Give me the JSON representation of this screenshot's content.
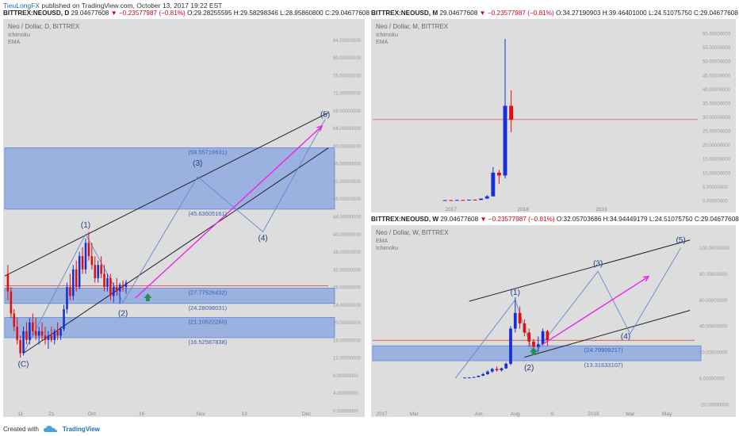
{
  "publish_bar": {
    "user": "TieuLongFX",
    "text": "published on TradingView.com, October 13, 2017 19:22 EST"
  },
  "headers": {
    "daily": {
      "symbol": "BITTREX:NEOUSD, D",
      "price": "29.04677608",
      "change": "−0.23577987 (−0.81%)",
      "o": "O:29.28255595",
      "h": "H:29.58298346",
      "l": "L:28.95860800",
      "c": "C:29.04677608"
    },
    "monthly": {
      "symbol": "BITTREX:NEOUSD, M",
      "price": "29.04677608",
      "change": "−0.23577987 (−0.81%)",
      "o": "O:34.27190903",
      "h": "H:39.46401000",
      "l": "L:24.51075750",
      "c": "C:29.04677608"
    },
    "weekly": {
      "symbol": "BITTREX:NEOUSD, W",
      "price": "29.04677608",
      "change": "−0.23577987 (−0.81%)",
      "o": "O:32.05703686",
      "h": "H:34.94449179",
      "l": "L:24.51075750",
      "c": "C:29.04677608"
    }
  },
  "footer": {
    "created_with": "Created with",
    "brand": "TradingView",
    "brand_icon": "tradingview-cloud-icon"
  },
  "colors": {
    "panel_bg": "#dddddd",
    "up": "#1530d8",
    "down": "#e01010",
    "zone": "#7f9fe3",
    "arrow": "#ee22ee",
    "wave": "#5d88c8"
  },
  "chart_data": [
    {
      "type": "candlestick",
      "id": "daily",
      "title": "Neo / Dollar, D, BITTREX",
      "indicators": [
        "Ichimoku",
        "EMA"
      ],
      "ylim": [
        0,
        88
      ],
      "y_ticks": [
        0,
        4,
        8,
        12,
        16,
        20,
        24,
        28,
        32,
        36,
        40,
        44,
        48,
        52,
        56,
        60,
        64,
        68,
        72,
        76,
        80,
        84
      ],
      "y_tick_labels": [
        "0.00000000",
        "4.00000000",
        "8.00000000",
        "12.00000000",
        "16.00000000",
        "20.00000000",
        "24.00000000",
        "28.00000000",
        "32.00000000",
        "36.00000000",
        "40.00000000",
        "44.00000000",
        "48.00000000",
        "52.00000000",
        "56.00000000",
        "60.00000000",
        "64.00000000",
        "68.00000000",
        "72.00000000",
        "76.00000000",
        "80.00000000",
        "84.00000000"
      ],
      "x_range": [
        0,
        104
      ],
      "x_ticks": [
        {
          "x": 5,
          "label": "11"
        },
        {
          "x": 15,
          "label": "21"
        },
        {
          "x": 28,
          "label": "Oct"
        },
        {
          "x": 44,
          "label": "16"
        },
        {
          "x": 63,
          "label": "Nov"
        },
        {
          "x": 77,
          "label": "13"
        },
        {
          "x": 97,
          "label": "Dec"
        }
      ],
      "candles": [
        {
          "x": 1,
          "o": 31,
          "h": 33,
          "l": 25,
          "c": 27
        },
        {
          "x": 2,
          "o": 27,
          "h": 28,
          "l": 21,
          "c": 22
        },
        {
          "x": 3,
          "o": 22,
          "h": 23,
          "l": 18,
          "c": 19
        },
        {
          "x": 4,
          "o": 19,
          "h": 21,
          "l": 15,
          "c": 16
        },
        {
          "x": 5,
          "o": 16,
          "h": 17,
          "l": 12,
          "c": 13
        },
        {
          "x": 6,
          "o": 13,
          "h": 19,
          "l": 12.5,
          "c": 18
        },
        {
          "x": 7,
          "o": 18,
          "h": 20,
          "l": 15,
          "c": 16
        },
        {
          "x": 8,
          "o": 16,
          "h": 21,
          "l": 15,
          "c": 20
        },
        {
          "x": 9,
          "o": 20,
          "h": 22,
          "l": 17,
          "c": 18
        },
        {
          "x": 10,
          "o": 18,
          "h": 21,
          "l": 16,
          "c": 17
        },
        {
          "x": 11,
          "o": 17,
          "h": 19,
          "l": 15,
          "c": 18
        },
        {
          "x": 12,
          "o": 18,
          "h": 20,
          "l": 16,
          "c": 17
        },
        {
          "x": 13,
          "o": 17,
          "h": 19,
          "l": 15,
          "c": 16
        },
        {
          "x": 14,
          "o": 16,
          "h": 18,
          "l": 14,
          "c": 17
        },
        {
          "x": 15,
          "o": 17,
          "h": 19,
          "l": 15.5,
          "c": 16
        },
        {
          "x": 16,
          "o": 16,
          "h": 18.5,
          "l": 15,
          "c": 18
        },
        {
          "x": 17,
          "o": 18,
          "h": 20,
          "l": 16,
          "c": 17
        },
        {
          "x": 18,
          "o": 17,
          "h": 19,
          "l": 16,
          "c": 18.5
        },
        {
          "x": 19,
          "o": 18.5,
          "h": 24,
          "l": 18,
          "c": 23
        },
        {
          "x": 20,
          "o": 23,
          "h": 29,
          "l": 22,
          "c": 28
        },
        {
          "x": 21,
          "o": 28,
          "h": 31,
          "l": 25,
          "c": 26
        },
        {
          "x": 22,
          "o": 26,
          "h": 33,
          "l": 25,
          "c": 32
        },
        {
          "x": 23,
          "o": 32,
          "h": 34,
          "l": 27,
          "c": 28
        },
        {
          "x": 24,
          "o": 28,
          "h": 36,
          "l": 27.5,
          "c": 35
        },
        {
          "x": 25,
          "o": 35,
          "h": 37,
          "l": 31,
          "c": 32
        },
        {
          "x": 26,
          "o": 32,
          "h": 39,
          "l": 31,
          "c": 38
        },
        {
          "x": 27,
          "o": 38,
          "h": 40.5,
          "l": 34,
          "c": 35
        },
        {
          "x": 28,
          "o": 35,
          "h": 38,
          "l": 32,
          "c": 33
        },
        {
          "x": 29,
          "o": 33,
          "h": 35,
          "l": 29,
          "c": 30
        },
        {
          "x": 30,
          "o": 30,
          "h": 34,
          "l": 29,
          "c": 33
        },
        {
          "x": 31,
          "o": 33,
          "h": 35,
          "l": 30,
          "c": 31
        },
        {
          "x": 32,
          "o": 31,
          "h": 33,
          "l": 27,
          "c": 28
        },
        {
          "x": 33,
          "o": 28,
          "h": 31,
          "l": 27,
          "c": 30
        },
        {
          "x": 34,
          "o": 30,
          "h": 31,
          "l": 25,
          "c": 26
        },
        {
          "x": 35,
          "o": 26,
          "h": 29,
          "l": 24.5,
          "c": 28
        },
        {
          "x": 36,
          "o": 28,
          "h": 30,
          "l": 26,
          "c": 27
        },
        {
          "x": 37,
          "o": 27,
          "h": 29,
          "l": 24.2,
          "c": 28.5
        },
        {
          "x": 38,
          "o": 28.5,
          "h": 29.5,
          "l": 27,
          "c": 28
        },
        {
          "x": 39,
          "o": 28,
          "h": 29.6,
          "l": 26.5,
          "c": 29
        }
      ],
      "horizontal_line": 28.3,
      "zones": [
        [
          24.28098031,
          27.77526432
        ],
        [
          16.52587838,
          21.10522265
        ],
        [
          45.63605161,
          59.55719631
        ]
      ],
      "fib_labels": [
        {
          "x": 59,
          "y": 59.55719631,
          "label": "(59.55719631)"
        },
        {
          "x": 59,
          "y": 45.63605161,
          "label": "(45.63605161)"
        },
        {
          "x": 59,
          "y": 27.77526432,
          "label": "(27.77526432)"
        },
        {
          "x": 59,
          "y": 24.28098031,
          "label": "(24.28098031)"
        },
        {
          "x": 59,
          "y": 21.10522265,
          "label": "(21.10522265)"
        },
        {
          "x": 59,
          "y": 16.52587838,
          "label": "(16.52587838)"
        }
      ],
      "wave_labels": [
        {
          "x": 6,
          "y": 10,
          "label": "(C)"
        },
        {
          "x": 26,
          "y": 41.5,
          "label": "(1)"
        },
        {
          "x": 38,
          "y": 21.5,
          "label": "(2)"
        },
        {
          "x": 62,
          "y": 55.5,
          "label": "(3)"
        },
        {
          "x": 83,
          "y": 38.5,
          "label": "(4)"
        },
        {
          "x": 103,
          "y": 66.5,
          "label": "(5)"
        }
      ],
      "wave_path": [
        [
          6,
          13
        ],
        [
          26,
          40
        ],
        [
          38,
          24.5
        ],
        [
          62,
          53
        ],
        [
          83,
          40.5
        ],
        [
          103,
          66
        ]
      ],
      "channel_lines": [
        {
          "from": [
            0,
            30.5
          ],
          "to": [
            104,
            67.5
          ]
        },
        {
          "from": [
            6,
            13
          ],
          "to": [
            104,
            59.5
          ]
        }
      ],
      "arrow": {
        "from": [
          42,
          25.5
        ],
        "to": [
          102,
          64.5
        ]
      },
      "marker": {
        "x": 46,
        "y": 25.5
      }
    },
    {
      "type": "candlestick",
      "id": "monthly",
      "title": "Neo / Dollar, M, BITTREX",
      "indicators": [
        "Ichimoku",
        "EMA"
      ],
      "ylim": [
        -2,
        64
      ],
      "y_tick_labels": [
        "0.00000000",
        "5.00000000",
        "10.00000000",
        "15.00000000",
        "20.00000000",
        "25.00000000",
        "30.00000000",
        "35.00000000",
        "40.00000000",
        "45.00000000",
        "50.00000000",
        "55.00000000",
        "60.00000000"
      ],
      "x_range": [
        0,
        54
      ],
      "x_ticks": [
        {
          "x": 13,
          "label": "2017"
        },
        {
          "x": 25,
          "label": "2018"
        },
        {
          "x": 38,
          "label": "2019"
        }
      ],
      "candles": [
        {
          "x": 12,
          "o": 0.1,
          "h": 0.2,
          "l": 0.05,
          "c": 0.15
        },
        {
          "x": 13,
          "o": 0.15,
          "h": 0.2,
          "l": 0.1,
          "c": 0.1
        },
        {
          "x": 14,
          "o": 0.1,
          "h": 0.2,
          "l": 0.05,
          "c": 0.2
        },
        {
          "x": 15,
          "o": 0.2,
          "h": 0.3,
          "l": 0.1,
          "c": 0.1
        },
        {
          "x": 16,
          "o": 0.1,
          "h": 0.3,
          "l": 0.1,
          "c": 0.3
        },
        {
          "x": 17,
          "o": 0.3,
          "h": 0.4,
          "l": 0.2,
          "c": 0.2
        },
        {
          "x": 18,
          "o": 0.2,
          "h": 0.8,
          "l": 0.2,
          "c": 0.7
        },
        {
          "x": 19,
          "o": 0.7,
          "h": 2,
          "l": 0.6,
          "c": 1.5
        },
        {
          "x": 20,
          "o": 1.5,
          "h": 12,
          "l": 1.5,
          "c": 10
        },
        {
          "x": 21,
          "o": 10,
          "h": 11,
          "l": 6,
          "c": 9
        },
        {
          "x": 22,
          "o": 9,
          "h": 58,
          "l": 8,
          "c": 34
        },
        {
          "x": 23,
          "o": 34,
          "h": 39.5,
          "l": 24.5,
          "c": 29
        }
      ],
      "horizontal_line": 29.04677608
    },
    {
      "type": "candlestick",
      "id": "weekly",
      "title": "Neo / Dollar, W, BITTREX",
      "indicators": [
        "EMA",
        "Ichimoku"
      ],
      "ylim": [
        -25,
        115
      ],
      "y_tick_labels": [
        "-20.00000000",
        "0.00000000",
        "20.00000000",
        "40.00000000",
        "60.00000000",
        "80.00000000",
        "100.00000000"
      ],
      "x_range": [
        0,
        70
      ],
      "x_ticks": [
        {
          "x": 2,
          "label": "2017"
        },
        {
          "x": 9,
          "label": "Mar"
        },
        {
          "x": 23,
          "label": "Jun"
        },
        {
          "x": 31,
          "label": "Aug"
        },
        {
          "x": 39,
          "label": "9"
        },
        {
          "x": 48,
          "label": "2018"
        },
        {
          "x": 56,
          "label": "Mar"
        },
        {
          "x": 64,
          "label": "May"
        }
      ],
      "candles": [
        {
          "x": 20,
          "o": 0.3,
          "h": 0.5,
          "l": 0.2,
          "c": 0.4
        },
        {
          "x": 21,
          "o": 0.4,
          "h": 0.6,
          "l": 0.3,
          "c": 0.5
        },
        {
          "x": 22,
          "o": 0.5,
          "h": 1,
          "l": 0.4,
          "c": 0.8
        },
        {
          "x": 23,
          "o": 0.8,
          "h": 2,
          "l": 0.7,
          "c": 1.8
        },
        {
          "x": 24,
          "o": 1.8,
          "h": 4,
          "l": 1.5,
          "c": 3
        },
        {
          "x": 25,
          "o": 3,
          "h": 6,
          "l": 2.5,
          "c": 5
        },
        {
          "x": 26,
          "o": 5,
          "h": 8,
          "l": 4,
          "c": 7
        },
        {
          "x": 27,
          "o": 7,
          "h": 9,
          "l": 5,
          "c": 6
        },
        {
          "x": 28,
          "o": 6,
          "h": 8,
          "l": 5,
          "c": 7.5
        },
        {
          "x": 29,
          "o": 7.5,
          "h": 12,
          "l": 7,
          "c": 11
        },
        {
          "x": 30,
          "o": 11,
          "h": 40,
          "l": 10,
          "c": 38
        },
        {
          "x": 31,
          "o": 38,
          "h": 62,
          "l": 35,
          "c": 50
        },
        {
          "x": 32,
          "o": 50,
          "h": 55,
          "l": 38,
          "c": 42
        },
        {
          "x": 33,
          "o": 42,
          "h": 45,
          "l": 32,
          "c": 35
        },
        {
          "x": 34,
          "o": 35,
          "h": 38,
          "l": 24,
          "c": 28
        },
        {
          "x": 35,
          "o": 28,
          "h": 30,
          "l": 20,
          "c": 24
        },
        {
          "x": 36,
          "o": 24,
          "h": 32,
          "l": 20,
          "c": 26
        },
        {
          "x": 37,
          "o": 26,
          "h": 38,
          "l": 25,
          "c": 36
        },
        {
          "x": 38,
          "o": 36,
          "h": 37,
          "l": 24.5,
          "c": 29
        }
      ],
      "horizontal_line": 29.04677608,
      "zones": [
        [
          13.31633107,
          24.79909217
        ]
      ],
      "fib_labels": [
        {
          "x": 46,
          "y": 24.79909217,
          "label": "(24.79909217)"
        },
        {
          "x": 46,
          "y": 13.31633107,
          "label": "(13.31633107)"
        }
      ],
      "wave_labels": [
        {
          "x": 31,
          "y": 64,
          "label": "(1)"
        },
        {
          "x": 34,
          "y": 6,
          "label": "(2)"
        },
        {
          "x": 49,
          "y": 86,
          "label": "(3)"
        },
        {
          "x": 55,
          "y": 30,
          "label": "(4)"
        },
        {
          "x": 67,
          "y": 104,
          "label": "(5)"
        }
      ],
      "wave_path": [
        [
          18,
          0
        ],
        [
          31,
          60
        ],
        [
          35,
          18
        ],
        [
          49,
          82
        ],
        [
          56,
          34
        ],
        [
          67,
          100
        ]
      ],
      "channel_lines": [
        {
          "from": [
            21,
            59
          ],
          "to": [
            69,
            106
          ]
        },
        {
          "from": [
            33,
            16
          ],
          "to": [
            69,
            52
          ]
        }
      ],
      "arrow": {
        "from": [
          37,
          26
        ],
        "to": [
          60,
          78
        ]
      },
      "marker": {
        "x": 35,
        "y": 20
      }
    }
  ]
}
